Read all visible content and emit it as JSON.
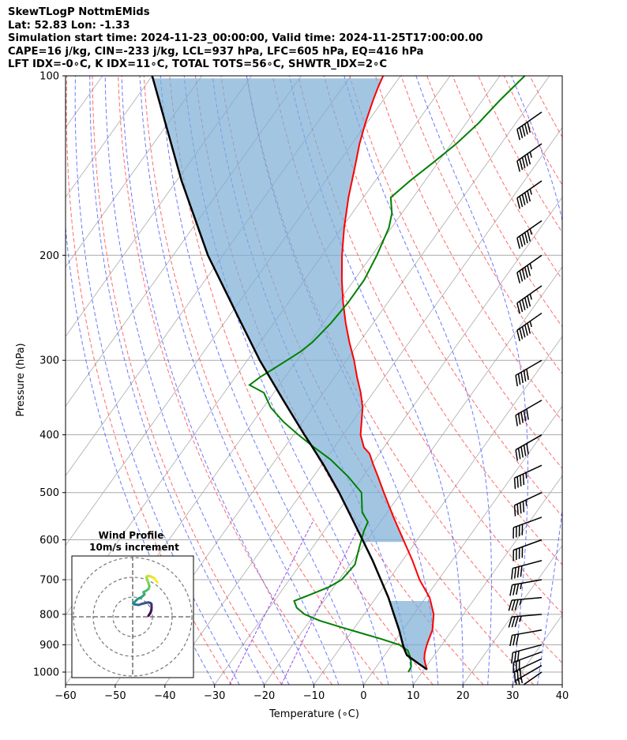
{
  "header": {
    "line1": "SkewTLogP NottmEMids",
    "line2": "Lat: 52.83   Lon: -1.33",
    "line3": "Simulation start time: 2024-11-23_00:00:00, Valid time: 2024-11-25T17:00:00.00",
    "line4": "CAPE=16 j/kg, CIN=-233 j/kg, LCL=937 hPa, LFC=605 hPa, EQ=416 hPa",
    "line5": "LFT IDX=-0∘C, K IDX=11∘C, TOTAL TOTS=56∘C, SHWTR_IDX=2∘C"
  },
  "chart_data": {
    "type": "skew-t",
    "xlabel": "Temperature (∘C)",
    "ylabel": "Pressure (hPa)",
    "xlim": [
      -60,
      40
    ],
    "ylim": [
      1050,
      100
    ],
    "x_ticks": [
      -60,
      -50,
      -40,
      -30,
      -20,
      -10,
      0,
      10,
      20,
      30,
      40
    ],
    "x_tick_labels": [
      "−60",
      "−50",
      "−40",
      "−30",
      "−20",
      "−10",
      "0",
      "10",
      "20",
      "30",
      "40"
    ],
    "y_ticks": [
      1000,
      900,
      800,
      700,
      600,
      500,
      400,
      300,
      200,
      100
    ],
    "y_tick_labels": [
      "1000",
      "900",
      "800",
      "700",
      "600",
      "500",
      "400",
      "300",
      "200",
      "100"
    ],
    "colors": {
      "temperature": "#ff0000",
      "dewpoint": "#008000",
      "parcel": "#000000",
      "cape_fill": "#7aaed6",
      "dry_adiabat": "#ff5050",
      "moist_adiabat": "#3b4cff",
      "mixing_ratio": "#8a2be2",
      "isotherm": "#aaaaaa"
    },
    "temperature": {
      "name": "Temperature",
      "pressure": [
        990,
        970,
        950,
        930,
        900,
        880,
        850,
        800,
        750,
        700,
        650,
        600,
        550,
        500,
        470,
        450,
        430,
        420,
        400,
        380,
        360,
        340,
        320,
        300,
        280,
        260,
        240,
        220,
        200,
        180,
        160,
        140,
        130,
        120,
        110,
        105,
        100
      ],
      "values": [
        10.6,
        9.5,
        8.5,
        7.8,
        7.0,
        6.6,
        6.0,
        4.0,
        0.8,
        -3.8,
        -8.0,
        -12.8,
        -18.0,
        -23.5,
        -27.0,
        -29.5,
        -32.0,
        -34.0,
        -36.5,
        -38.2,
        -40.0,
        -42.5,
        -45.5,
        -48.5,
        -52.0,
        -55.5,
        -59.0,
        -62.5,
        -66.0,
        -69.5,
        -73.0,
        -76.5,
        -78.5,
        -80.3,
        -82.0,
        -82.8,
        -83.5
      ]
    },
    "dewpoint": {
      "name": "Dewpoint",
      "pressure": [
        1000,
        980,
        960,
        940,
        920,
        900,
        880,
        860,
        840,
        820,
        800,
        780,
        760,
        740,
        720,
        700,
        660,
        620,
        580,
        560,
        540,
        500,
        470,
        440,
        420,
        400,
        380,
        360,
        340,
        330,
        320,
        310,
        300,
        290,
        280,
        270,
        260,
        240,
        220,
        200,
        180,
        170,
        160,
        150,
        140,
        130,
        120,
        110,
        100
      ],
      "values": [
        7.2,
        7.0,
        6.2,
        5.2,
        4.0,
        1.5,
        -3.0,
        -8.0,
        -13.0,
        -18.0,
        -22.0,
        -24.5,
        -26.0,
        -23.5,
        -21.0,
        -19.5,
        -19.0,
        -20.5,
        -22.0,
        -22.5,
        -25.0,
        -28.0,
        -33.0,
        -39.0,
        -44.0,
        -49.0,
        -54.0,
        -58.5,
        -62.0,
        -66.0,
        -65.0,
        -63.5,
        -62.0,
        -60.5,
        -59.5,
        -59.0,
        -58.5,
        -58.0,
        -58.0,
        -59.0,
        -60.5,
        -62.0,
        -64.5,
        -63.0,
        -61.0,
        -59.0,
        -57.5,
        -56.5,
        -55.0
      ]
    },
    "parcel": {
      "name": "Parcel",
      "pressure": [
        990,
        970,
        950,
        937,
        920,
        900,
        850,
        800,
        750,
        700,
        650,
        605,
        550,
        500,
        450,
        416,
        400,
        350,
        300,
        250,
        200,
        150,
        100
      ],
      "values": [
        10.6,
        8.3,
        6.0,
        4.5,
        3.4,
        2.2,
        -0.7,
        -4.0,
        -7.5,
        -11.6,
        -16.0,
        -20.5,
        -26.5,
        -32.5,
        -39.5,
        -45.0,
        -47.8,
        -57.0,
        -67.5,
        -79.0,
        -93.0,
        -109.0,
        -130.0
      ]
    },
    "cape_region": {
      "pressure_range": [
        605,
        416
      ],
      "upper_fill_top": 100
    },
    "wind_barbs": {
      "pressure": [
        1000,
        975,
        950,
        925,
        900,
        850,
        800,
        750,
        700,
        650,
        600,
        550,
        500,
        450,
        400,
        350,
        300,
        250,
        225,
        200,
        175,
        150,
        130,
        115
      ],
      "speed_knots": [
        25,
        25,
        30,
        30,
        30,
        30,
        35,
        35,
        35,
        40,
        40,
        40,
        45,
        45,
        50,
        50,
        50,
        55,
        55,
        55,
        55,
        55,
        55,
        50
      ],
      "direction_deg": [
        235,
        240,
        245,
        250,
        255,
        260,
        265,
        265,
        260,
        255,
        250,
        250,
        245,
        245,
        240,
        240,
        240,
        235,
        235,
        235,
        235,
        235,
        235,
        235
      ]
    },
    "hodograph": {
      "title": "Wind Profile",
      "subtitle": "10m/s increment",
      "ring_increment_ms": 10,
      "u": [
        8.0,
        9.0,
        9.5,
        9.6,
        9.5,
        9.0,
        8.0,
        6.5,
        4.5,
        3.0,
        1.5,
        0.5,
        0.3,
        1.0,
        2.5,
        4.5,
        6.0,
        5.5,
        6.5,
        8.0,
        8.5,
        8.0,
        7.5,
        7.0,
        7.5,
        9.0,
        11.0,
        12.5
      ],
      "v": [
        0.5,
        2.0,
        3.5,
        5.0,
        6.5,
        7.0,
        7.3,
        7.0,
        6.5,
        6.0,
        6.2,
        6.4,
        6.7,
        7.5,
        9.0,
        10.0,
        11.3,
        12.5,
        13.0,
        14.0,
        15.5,
        17.0,
        18.5,
        20.0,
        20.7,
        20.5,
        19.5,
        17.5
      ]
    }
  }
}
